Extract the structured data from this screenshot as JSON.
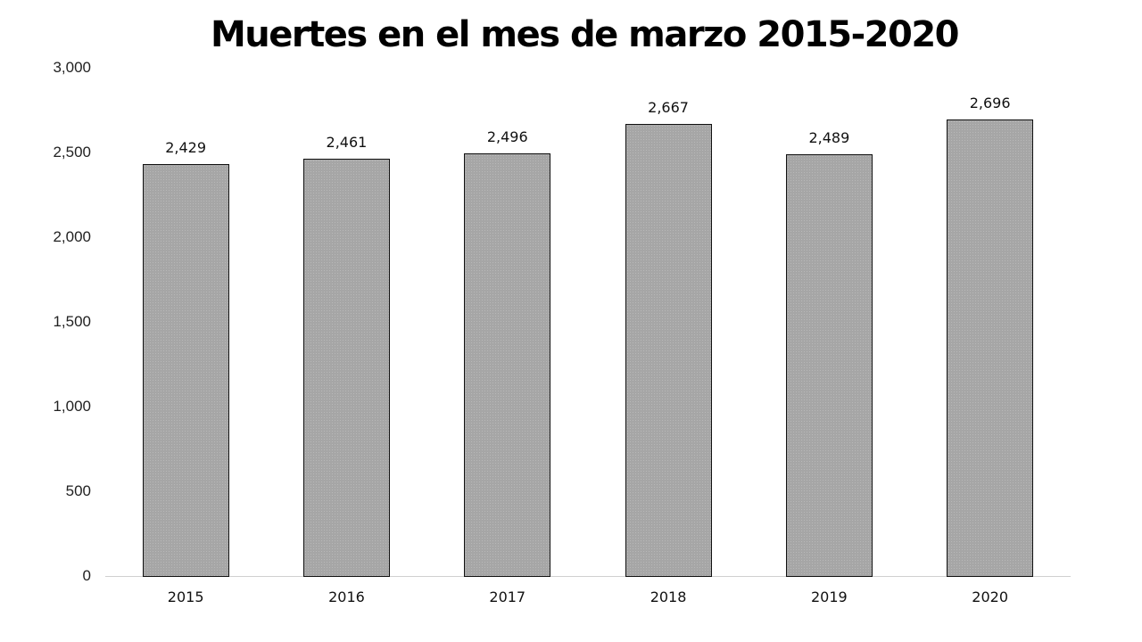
{
  "chart_data": {
    "type": "bar",
    "title": "Muertes en el mes de marzo 2015-2020",
    "xlabel": "",
    "ylabel": "",
    "categories": [
      "2015",
      "2016",
      "2017",
      "2018",
      "2019",
      "2020"
    ],
    "values": [
      2429,
      2461,
      2496,
      2667,
      2489,
      2696
    ],
    "value_labels": [
      "2,429",
      "2,461",
      "2,496",
      "2,667",
      "2,489",
      "2,696"
    ],
    "ylim": [
      0,
      3000
    ],
    "yticks": [
      "0",
      "500",
      "1,000",
      "1,500",
      "2,000",
      "2,500",
      "3,000"
    ],
    "grid": false,
    "legend": null,
    "bar_color": "#a6a6a6",
    "bar_border_color": "#111111"
  }
}
